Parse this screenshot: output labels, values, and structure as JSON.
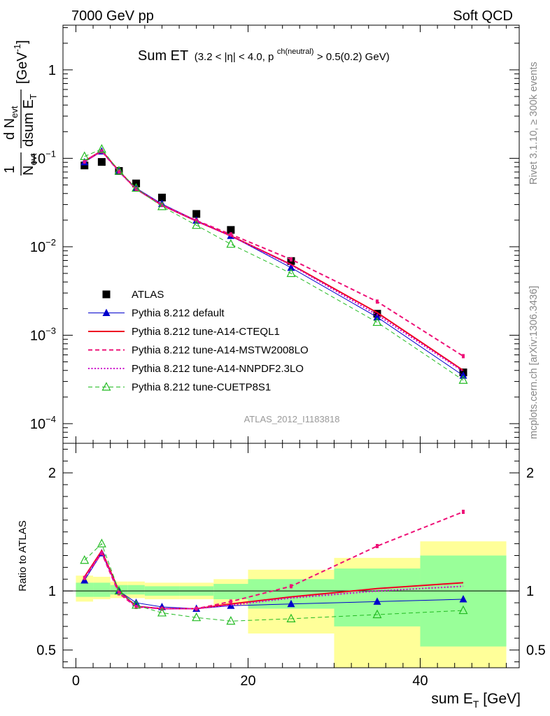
{
  "header": {
    "energy_label": "7000 GeV pp",
    "category_label": "Soft QCD"
  },
  "side_labels": {
    "rivet": "Rivet 3.1.10, ≥ 300k events",
    "mcplots": "mcplots.cern.ch [arXiv:1306.3436]"
  },
  "chart_data": [
    {
      "type": "line",
      "panel": "main",
      "scale": "log",
      "title_main": "Sum ET",
      "title_sub": "(3.2 < |η| < 4.0, p",
      "title_sup": "ch(neutral)",
      "title_tail": " > 0.5(0.2) GeV)",
      "ylabel": "1/N_evt dN_evt/dsum E_T [GeV⁻¹]",
      "ylabel_parts": {
        "frac1_num": "1",
        "frac1_den": "N",
        "frac1_den_sub": "evt",
        "frac2_num": "d N",
        "frac2_num_sub": "evt",
        "frac2_den": "dsum E",
        "frac2_den_sub": "T",
        "unit": "[GeV",
        "unit_sup": "-1",
        "unit_close": "]"
      },
      "xlim": [
        -1.5,
        51.5
      ],
      "ylim": [
        6e-05,
        3.2
      ],
      "y_ticks": [
        {
          "value": 1,
          "label": "1"
        },
        {
          "value": 0.1,
          "label": "10",
          "sup": "−1"
        },
        {
          "value": 0.01,
          "label": "10",
          "sup": "−2"
        },
        {
          "value": 0.001,
          "label": "10",
          "sup": "−3"
        },
        {
          "value": 0.0001,
          "label": "10",
          "sup": "−4"
        }
      ],
      "analysis_label": "ATLAS_2012_I1183818",
      "x": [
        1,
        3,
        5,
        7,
        10,
        14,
        18,
        25,
        35,
        45
      ],
      "series": [
        {
          "name": "ATLAS",
          "color": "#000000",
          "marker": "square",
          "line": "none",
          "values": [
            0.083,
            0.091,
            0.072,
            0.052,
            0.036,
            0.0235,
            0.0155,
            0.0069,
            0.00175,
            0.00038
          ]
        },
        {
          "name": "Pythia 8.212 default",
          "color": "#0000cc",
          "marker": "triangle",
          "line": "solid",
          "width": 1,
          "values": [
            0.0905,
            0.12,
            0.072,
            0.046,
            0.0305,
            0.0198,
            0.0133,
            0.0058,
            0.0016,
            0.00035
          ]
        },
        {
          "name": "Pythia 8.212 tune-A14-CTEQL1",
          "color": "#ee0022",
          "marker": "none",
          "line": "solid",
          "width": 2,
          "values": [
            0.093,
            0.122,
            0.072,
            0.045,
            0.0295,
            0.0195,
            0.0133,
            0.0063,
            0.0018,
            0.0004
          ]
        },
        {
          "name": "Pythia 8.212 tune-A14-MSTW2008LO",
          "color": "#ee1177",
          "marker": "bar",
          "line": "dashed",
          "width": 2,
          "values": [
            0.092,
            0.12,
            0.071,
            0.045,
            0.0298,
            0.0198,
            0.0138,
            0.0072,
            0.0024,
            0.00058
          ]
        },
        {
          "name": "Pythia 8.212 tune-A14-NNPDF2.3LO",
          "color": "#cc00cc",
          "marker": "none",
          "line": "dotted",
          "width": 2,
          "values": [
            0.092,
            0.121,
            0.071,
            0.045,
            0.0296,
            0.0195,
            0.0132,
            0.0062,
            0.0017,
            0.00039
          ]
        },
        {
          "name": "Pythia 8.212 tune-CUETP8S1",
          "color": "#22bb22",
          "marker": "open-triangle",
          "line": "dashed",
          "width": 1,
          "values": [
            0.105,
            0.127,
            0.072,
            0.046,
            0.0285,
            0.0175,
            0.0107,
            0.005,
            0.0014,
            0.00031
          ]
        }
      ]
    },
    {
      "type": "line",
      "panel": "ratio",
      "ylabel": "Ratio to ATLAS",
      "xlabel": "sum E",
      "xlabel_sub": "T",
      "xlabel_unit": " [GeV]",
      "xlim": [
        -1.5,
        51.5
      ],
      "ylim": [
        0.35,
        2.25
      ],
      "x_ticks": [
        0,
        20,
        40
      ],
      "y_ticks": [
        0.5,
        1,
        2
      ],
      "y_tick_labels": [
        "0.5",
        "1",
        "2"
      ],
      "bands": [
        {
          "x0": 0,
          "x1": 2,
          "yellow": [
            0.91,
            1.13
          ],
          "green": [
            0.95,
            1.07
          ]
        },
        {
          "x0": 2,
          "x1": 4,
          "yellow": [
            0.93,
            1.12
          ],
          "green": [
            0.95,
            1.07
          ]
        },
        {
          "x0": 4,
          "x1": 6,
          "yellow": [
            0.94,
            1.08
          ],
          "green": [
            0.97,
            1.05
          ]
        },
        {
          "x0": 6,
          "x1": 8,
          "yellow": [
            0.94,
            1.08
          ],
          "green": [
            0.97,
            1.05
          ]
        },
        {
          "x0": 8,
          "x1": 12,
          "yellow": [
            0.93,
            1.07
          ],
          "green": [
            0.96,
            1.04
          ]
        },
        {
          "x0": 12,
          "x1": 16,
          "yellow": [
            0.93,
            1.07
          ],
          "green": [
            0.96,
            1.04
          ]
        },
        {
          "x0": 16,
          "x1": 20,
          "yellow": [
            0.88,
            1.1
          ],
          "green": [
            0.93,
            1.06
          ]
        },
        {
          "x0": 20,
          "x1": 30,
          "yellow": [
            0.64,
            1.18
          ],
          "green": [
            0.85,
            1.1
          ]
        },
        {
          "x0": 30,
          "x1": 40,
          "yellow": [
            0.35,
            1.28
          ],
          "green": [
            0.7,
            1.19
          ]
        },
        {
          "x0": 40,
          "x1": 50,
          "yellow": [
            0.35,
            1.42
          ],
          "green": [
            0.53,
            1.3
          ]
        }
      ],
      "x": [
        1,
        3,
        5,
        7,
        10,
        14,
        18,
        25,
        35,
        45
      ],
      "series": [
        {
          "name": "Pythia 8.212 default",
          "color": "#0000cc",
          "marker": "triangle",
          "line": "solid",
          "width": 1,
          "values": [
            1.09,
            1.32,
            1.0,
            0.9,
            0.865,
            0.85,
            0.875,
            0.89,
            0.91,
            0.93
          ]
        },
        {
          "name": "Pythia 8.212 tune-A14-CTEQL1",
          "color": "#ee0022",
          "marker": "none",
          "line": "solid",
          "width": 2,
          "values": [
            1.12,
            1.34,
            1.0,
            0.87,
            0.85,
            0.85,
            0.89,
            0.95,
            1.02,
            1.07
          ]
        },
        {
          "name": "Pythia 8.212 tune-A14-MSTW2008LO",
          "color": "#ee1177",
          "marker": "bar",
          "line": "dashed",
          "width": 2,
          "values": [
            1.11,
            1.32,
            0.98,
            0.865,
            0.85,
            0.85,
            0.91,
            1.04,
            1.38,
            1.67
          ]
        },
        {
          "name": "Pythia 8.212 tune-A14-NNPDF2.3LO",
          "color": "#cc00cc",
          "marker": "none",
          "line": "dotted",
          "width": 2,
          "values": [
            1.11,
            1.33,
            0.99,
            0.87,
            0.85,
            0.85,
            0.88,
            0.94,
            1.0,
            1.04
          ]
        },
        {
          "name": "Pythia 8.212 tune-CUETP8S1",
          "color": "#22bb22",
          "marker": "open-triangle",
          "line": "dashed",
          "width": 1,
          "values": [
            1.26,
            1.4,
            1.0,
            0.88,
            0.815,
            0.775,
            0.745,
            0.765,
            0.8,
            0.835
          ]
        }
      ]
    }
  ]
}
